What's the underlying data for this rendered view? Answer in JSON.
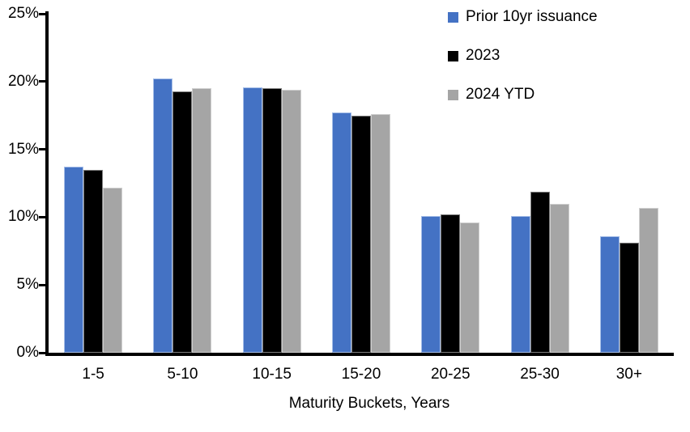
{
  "chart_data": {
    "type": "bar",
    "title": "",
    "categories": [
      "1-5",
      "5-10",
      "10-15",
      "15-20",
      "20-25",
      "25-30",
      "30+"
    ],
    "series": [
      {
        "name": "Prior 10yr issuance",
        "color": "#4472C4",
        "edge_color": "#A7BFE8",
        "values": [
          13.7,
          20.2,
          19.6,
          17.7,
          10.1,
          10.1,
          8.6
        ]
      },
      {
        "name": "2023",
        "color": "#000000",
        "edge_color": "#7F7F7F",
        "values": [
          13.5,
          19.3,
          19.5,
          17.5,
          10.2,
          11.9,
          8.1
        ]
      },
      {
        "name": "2024 YTD",
        "color": "#A5A5A5",
        "edge_color": "#CFCFCF",
        "values": [
          12.2,
          19.5,
          19.4,
          17.6,
          9.6,
          11.0,
          10.7
        ]
      }
    ],
    "xlabel": "Maturity Buckets, Years",
    "ylabel": "",
    "ylim": [
      0,
      25
    ],
    "y_ticks": [
      {
        "label": "0%",
        "value": 0
      },
      {
        "label": "5%",
        "value": 5
      },
      {
        "label": "10%",
        "value": 10
      },
      {
        "label": "15%",
        "value": 15
      },
      {
        "label": "20%",
        "value": 20
      },
      {
        "label": "25%",
        "value": 25
      }
    ],
    "grid": false,
    "legend_position": "top-right",
    "axis_color": "#000000"
  }
}
